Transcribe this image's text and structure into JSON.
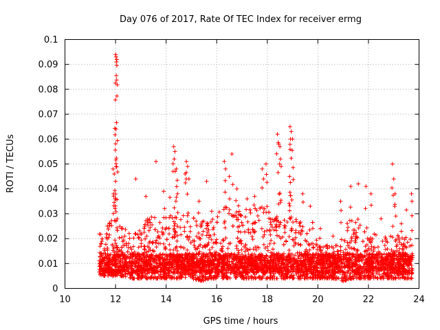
{
  "chart_data": {
    "type": "scatter",
    "title": "Day 076 of 2017, Rate Of TEC Index for receiver ermg",
    "xlabel": "GPS time / hours",
    "ylabel": "ROTI / TECUs",
    "xlim": [
      10,
      24
    ],
    "ylim": [
      0,
      0.1
    ],
    "xticks": [
      "10",
      "12",
      "14",
      "16",
      "18",
      "20",
      "22",
      "24"
    ],
    "yticks": [
      "0",
      "0.01",
      "0.02",
      "0.03",
      "0.04",
      "0.05",
      "0.06",
      "0.07",
      "0.08",
      "0.09",
      "0.1"
    ],
    "grid": true,
    "marker": "+",
    "color": "#ff0000",
    "data_span_hours": [
      11.35,
      23.75
    ],
    "series": [
      {
        "name": "ROTI",
        "points": [
          [
            12.0,
            0.094
          ],
          [
            12.02,
            0.093
          ],
          [
            12.05,
            0.092
          ],
          [
            12.03,
            0.091
          ],
          [
            11.9,
            0.048
          ],
          [
            11.95,
            0.046
          ],
          [
            12.0,
            0.043
          ],
          [
            11.92,
            0.038
          ],
          [
            11.98,
            0.036
          ],
          [
            12.8,
            0.044
          ],
          [
            13.2,
            0.037
          ],
          [
            13.6,
            0.051
          ],
          [
            13.9,
            0.039
          ],
          [
            14.3,
            0.057
          ],
          [
            14.35,
            0.055
          ],
          [
            14.32,
            0.052
          ],
          [
            14.4,
            0.048
          ],
          [
            14.45,
            0.038
          ],
          [
            14.8,
            0.051
          ],
          [
            14.85,
            0.049
          ],
          [
            14.75,
            0.046
          ],
          [
            14.9,
            0.044
          ],
          [
            15.3,
            0.035
          ],
          [
            15.6,
            0.043
          ],
          [
            15.8,
            0.031
          ],
          [
            16.3,
            0.051
          ],
          [
            16.35,
            0.048
          ],
          [
            16.6,
            0.054
          ],
          [
            16.5,
            0.045
          ],
          [
            16.8,
            0.04
          ],
          [
            17.2,
            0.036
          ],
          [
            17.5,
            0.037
          ],
          [
            17.8,
            0.048
          ],
          [
            17.85,
            0.044
          ],
          [
            17.95,
            0.05
          ],
          [
            18.4,
            0.062
          ],
          [
            18.45,
            0.058
          ],
          [
            18.5,
            0.057
          ],
          [
            18.55,
            0.049
          ],
          [
            18.52,
            0.052
          ],
          [
            18.9,
            0.065
          ],
          [
            18.95,
            0.063
          ],
          [
            18.92,
            0.06
          ],
          [
            19.0,
            0.06
          ],
          [
            18.88,
            0.045
          ],
          [
            19.4,
            0.038
          ],
          [
            19.7,
            0.033
          ],
          [
            20.1,
            0.024
          ],
          [
            20.6,
            0.021
          ],
          [
            20.9,
            0.035
          ],
          [
            21.3,
            0.041
          ],
          [
            21.6,
            0.042
          ],
          [
            21.9,
            0.041
          ],
          [
            22.1,
            0.038
          ],
          [
            22.5,
            0.028
          ],
          [
            22.95,
            0.05
          ],
          [
            23.0,
            0.044
          ],
          [
            23.05,
            0.038
          ],
          [
            23.3,
            0.026
          ],
          [
            23.7,
            0.038
          ],
          [
            23.72,
            0.035
          ]
        ],
        "envelope": [
          [
            11.35,
            0.005,
            0.022
          ],
          [
            11.8,
            0.005,
            0.028
          ],
          [
            12.2,
            0.005,
            0.026
          ],
          [
            12.6,
            0.004,
            0.022
          ],
          [
            13.0,
            0.004,
            0.026
          ],
          [
            13.4,
            0.004,
            0.03
          ],
          [
            13.8,
            0.004,
            0.026
          ],
          [
            14.2,
            0.004,
            0.032
          ],
          [
            14.6,
            0.004,
            0.03
          ],
          [
            15.0,
            0.004,
            0.026
          ],
          [
            15.4,
            0.003,
            0.03
          ],
          [
            15.8,
            0.004,
            0.028
          ],
          [
            16.2,
            0.004,
            0.032
          ],
          [
            16.6,
            0.004,
            0.034
          ],
          [
            17.0,
            0.004,
            0.03
          ],
          [
            17.4,
            0.004,
            0.032
          ],
          [
            17.8,
            0.004,
            0.034
          ],
          [
            18.2,
            0.004,
            0.03
          ],
          [
            18.6,
            0.004,
            0.03
          ],
          [
            19.0,
            0.004,
            0.03
          ],
          [
            19.4,
            0.004,
            0.026
          ],
          [
            19.8,
            0.004,
            0.018
          ],
          [
            20.2,
            0.004,
            0.018
          ],
          [
            20.6,
            0.004,
            0.017
          ],
          [
            21.0,
            0.003,
            0.022
          ],
          [
            21.4,
            0.004,
            0.028
          ],
          [
            21.8,
            0.004,
            0.026
          ],
          [
            22.2,
            0.004,
            0.022
          ],
          [
            22.6,
            0.004,
            0.02
          ],
          [
            23.0,
            0.004,
            0.024
          ],
          [
            23.4,
            0.004,
            0.02
          ],
          [
            23.75,
            0.004,
            0.022
          ]
        ]
      }
    ]
  }
}
